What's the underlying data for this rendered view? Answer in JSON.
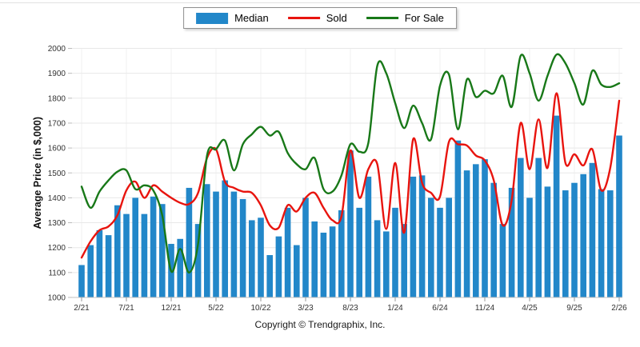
{
  "legend": {
    "items": [
      {
        "label": "Median",
        "type": "bar",
        "color": "#2287c9"
      },
      {
        "label": "Sold",
        "type": "line",
        "color": "#e8140e"
      },
      {
        "label": "For Sale",
        "type": "line",
        "color": "#187818"
      }
    ]
  },
  "footer": {
    "text": "Copyright © Trendgraphix, Inc."
  },
  "chart_data": {
    "type": "combo",
    "title": "",
    "xlabel": "",
    "ylabel": "Average Price (in $,000)",
    "ylim": [
      1000,
      2000
    ],
    "ytick_step": 100,
    "x_label_every": 5,
    "grid": true,
    "legend_position": "top-center",
    "categories": [
      "2/21",
      "3/21",
      "4/21",
      "5/21",
      "6/21",
      "7/21",
      "8/21",
      "9/21",
      "10/21",
      "11/21",
      "12/21",
      "1/22",
      "2/22",
      "3/22",
      "4/22",
      "5/22",
      "6/22",
      "7/22",
      "8/22",
      "9/22",
      "10/22",
      "11/22",
      "12/22",
      "1/23",
      "2/23",
      "3/23",
      "4/23",
      "5/23",
      "6/23",
      "7/23",
      "8/23",
      "9/23",
      "10/23",
      "11/23",
      "12/23",
      "1/24",
      "2/24",
      "3/24",
      "4/24",
      "5/24",
      "6/24",
      "7/24",
      "8/24",
      "9/24",
      "10/24",
      "11/24",
      "12/24",
      "1/25",
      "2/25",
      "3/25",
      "4/25",
      "5/25",
      "6/25",
      "7/25",
      "8/25",
      "9/25",
      "10/25",
      "11/25",
      "12/25",
      "1/26",
      "2/26"
    ],
    "series": [
      {
        "name": "Median",
        "type": "bar",
        "color": "#2287c9",
        "values": [
          1130,
          1210,
          1270,
          1250,
          1370,
          1335,
          1400,
          1335,
          1405,
          1375,
          1215,
          1235,
          1440,
          1295,
          1455,
          1425,
          1470,
          1425,
          1395,
          1310,
          1320,
          1170,
          1245,
          1360,
          1210,
          1400,
          1305,
          1260,
          1285,
          1350,
          1590,
          1360,
          1485,
          1310,
          1265,
          1360,
          1295,
          1485,
          1490,
          1400,
          1360,
          1400,
          1630,
          1510,
          1535,
          1555,
          1460,
          1295,
          1440,
          1560,
          1400,
          1560,
          1445,
          1730,
          1430,
          1460,
          1495,
          1540,
          1435,
          1430,
          1650
        ]
      },
      {
        "name": "Sold",
        "type": "line",
        "color": "#e8140e",
        "values": [
          1160,
          1225,
          1270,
          1285,
          1330,
          1430,
          1465,
          1400,
          1450,
          1425,
          1400,
          1380,
          1375,
          1420,
          1560,
          1595,
          1465,
          1440,
          1425,
          1420,
          1370,
          1290,
          1280,
          1370,
          1345,
          1400,
          1420,
          1360,
          1310,
          1325,
          1590,
          1400,
          1515,
          1535,
          1275,
          1540,
          1260,
          1635,
          1460,
          1420,
          1405,
          1625,
          1615,
          1610,
          1570,
          1550,
          1470,
          1290,
          1390,
          1700,
          1515,
          1715,
          1520,
          1820,
          1540,
          1575,
          1530,
          1595,
          1430,
          1520,
          1790
        ]
      },
      {
        "name": "For Sale",
        "type": "line",
        "color": "#187818",
        "values": [
          1445,
          1360,
          1425,
          1470,
          1505,
          1510,
          1435,
          1450,
          1430,
          1330,
          1105,
          1195,
          1100,
          1215,
          1570,
          1595,
          1630,
          1510,
          1615,
          1655,
          1685,
          1650,
          1665,
          1580,
          1535,
          1515,
          1560,
          1435,
          1425,
          1490,
          1615,
          1585,
          1620,
          1930,
          1900,
          1780,
          1680,
          1770,
          1700,
          1635,
          1850,
          1895,
          1675,
          1875,
          1805,
          1830,
          1820,
          1890,
          1765,
          1970,
          1900,
          1790,
          1890,
          1975,
          1940,
          1860,
          1775,
          1910,
          1855,
          1845,
          1860
        ]
      }
    ]
  }
}
